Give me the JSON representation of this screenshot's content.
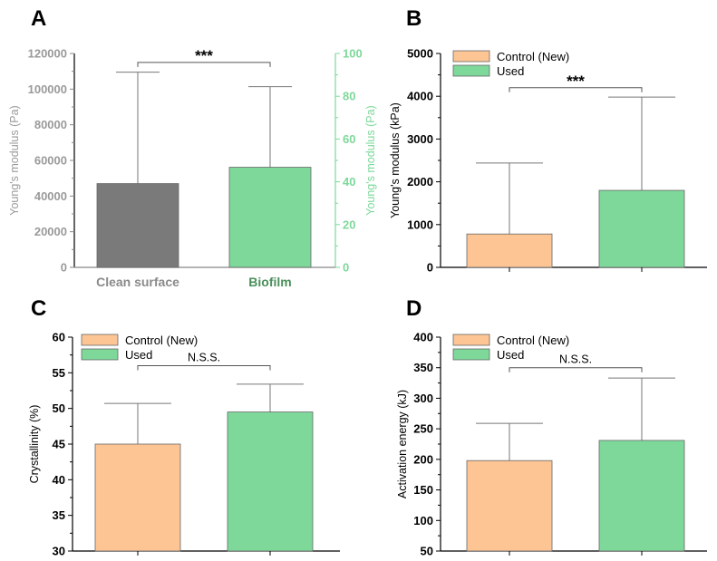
{
  "colors": {
    "clean": "#7a7a7a",
    "biofilm": "#7dd89a",
    "control": "#fdc594",
    "used": "#7dd89a",
    "right_axis": "#7dd89a",
    "left_axis_grey": "#9a9a9a",
    "biofilm_label": "#4a8f5a",
    "clean_label": "#8a8a8a"
  },
  "chart_data": [
    {
      "panel": "A",
      "type": "bar",
      "title": "",
      "categories": [
        "Clean surface",
        "Biofilm"
      ],
      "ylabel_left": "Young's modulus (Pa)",
      "ylabel_right": "Young's modulus (Pa)",
      "ylim_left": [
        0,
        120000
      ],
      "yticks_left": [
        0,
        20000,
        40000,
        60000,
        80000,
        100000,
        120000
      ],
      "ylim_right": [
        0,
        100
      ],
      "yticks_right": [
        0,
        20,
        40,
        60,
        80,
        100
      ],
      "series": [
        {
          "name": "Clean surface",
          "axis": "left",
          "value": 47000,
          "error_upper": 109500
        },
        {
          "name": "Biofilm",
          "axis": "right",
          "value": 46.8,
          "error_upper": 84.5
        }
      ],
      "significance": {
        "label": "***",
        "between": [
          0,
          1
        ],
        "level_left_units": 115000
      }
    },
    {
      "panel": "B",
      "type": "bar",
      "categories": [
        "Control (New)",
        "Used"
      ],
      "legend": [
        "Control (New)",
        "Used"
      ],
      "ylabel": "Young's modulus (kPa)",
      "ylim": [
        0,
        5000
      ],
      "yticks": [
        0,
        1000,
        2000,
        3000,
        4000,
        5000
      ],
      "values": [
        780,
        1800
      ],
      "error_upper": [
        2440,
        3980
      ],
      "significance": {
        "label": "***",
        "level": 4200
      }
    },
    {
      "panel": "C",
      "type": "bar",
      "categories": [
        "Control (New)",
        "Used"
      ],
      "legend": [
        "Control (New)",
        "Used"
      ],
      "ylabel": "Crystallinity (%)",
      "ylim": [
        30,
        60
      ],
      "yticks": [
        30,
        35,
        40,
        45,
        50,
        55,
        60
      ],
      "values": [
        45.0,
        49.5
      ],
      "error_upper": [
        50.7,
        53.4
      ],
      "significance": {
        "label": "N.S.S.",
        "level": 56
      }
    },
    {
      "panel": "D",
      "type": "bar",
      "categories": [
        "Control (New)",
        "Used"
      ],
      "legend": [
        "Control (New)",
        "Used"
      ],
      "ylabel": "Activation energy (kJ)",
      "ylim": [
        50,
        400
      ],
      "yticks": [
        50,
        100,
        150,
        200,
        250,
        300,
        350,
        400
      ],
      "values": [
        198,
        231
      ],
      "error_upper": [
        259,
        333
      ],
      "significance": {
        "label": "N.S.S.",
        "level": 350
      }
    }
  ]
}
